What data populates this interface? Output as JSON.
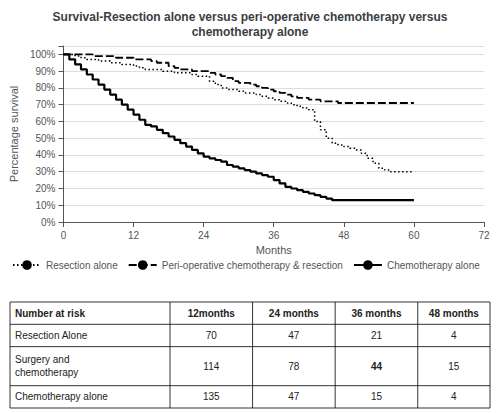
{
  "chart_data": {
    "type": "step",
    "title": "Survival-Resection alone versus peri-operative chemotherapy versus\nchemotherapy alone",
    "xlabel": "Months",
    "ylabel": "Percentage survival",
    "xlim": [
      0,
      72
    ],
    "ylim": [
      0,
      1.05
    ],
    "xticks": [
      0,
      12,
      24,
      36,
      48,
      60,
      72
    ],
    "yticks": [
      {
        "value": 0,
        "label": "0%"
      },
      {
        "value": 0.1,
        "label": "10%"
      },
      {
        "value": 0.2,
        "label": "20%"
      },
      {
        "value": 0.3,
        "label": "30%"
      },
      {
        "value": 0.4,
        "label": "40%"
      },
      {
        "value": 0.5,
        "label": "50%"
      },
      {
        "value": 0.6,
        "label": "60%"
      },
      {
        "value": 0.7,
        "label": "70%"
      },
      {
        "value": 0.8,
        "label": "80%"
      },
      {
        "value": 0.9,
        "label": "90%"
      },
      {
        "value": 1.0,
        "label": "100%"
      }
    ],
    "grid": "y",
    "legend": "bottom",
    "series": [
      {
        "name": "Resection alone",
        "color": "#000000",
        "line_style": "dotted",
        "x": [
          0,
          2,
          3,
          4,
          5,
          6,
          7,
          8,
          9,
          10,
          11,
          12,
          13,
          14,
          15,
          16,
          17,
          18,
          19,
          20,
          21,
          22,
          23,
          24,
          25,
          26,
          27,
          28,
          29,
          30,
          31,
          32,
          33,
          34,
          35,
          36,
          37,
          38,
          39,
          40,
          41,
          42,
          43,
          44,
          45,
          46,
          47,
          48,
          49,
          50,
          51,
          52,
          53,
          54,
          55,
          56,
          57,
          58,
          59,
          60
        ],
        "values": [
          1.0,
          0.99,
          0.98,
          0.97,
          0.97,
          0.96,
          0.96,
          0.95,
          0.95,
          0.94,
          0.94,
          0.93,
          0.92,
          0.91,
          0.91,
          0.91,
          0.9,
          0.9,
          0.89,
          0.89,
          0.89,
          0.88,
          0.87,
          0.87,
          0.84,
          0.82,
          0.8,
          0.79,
          0.79,
          0.78,
          0.77,
          0.77,
          0.76,
          0.75,
          0.74,
          0.73,
          0.72,
          0.71,
          0.7,
          0.69,
          0.68,
          0.67,
          0.6,
          0.55,
          0.5,
          0.47,
          0.46,
          0.45,
          0.44,
          0.43,
          0.41,
          0.38,
          0.35,
          0.32,
          0.31,
          0.3,
          0.3,
          0.3,
          0.3,
          0.3
        ]
      },
      {
        "name": "Peri-operative chemotherapy & resection",
        "color": "#000000",
        "line_style": "dashed",
        "x": [
          0,
          1,
          2,
          3,
          4,
          5,
          6,
          7,
          8,
          9,
          10,
          11,
          12,
          13,
          14,
          15,
          16,
          17,
          18,
          19,
          20,
          21,
          22,
          23,
          24,
          25,
          26,
          27,
          28,
          29,
          30,
          31,
          32,
          33,
          34,
          35,
          36,
          37,
          38,
          39,
          40,
          41,
          42,
          43,
          44,
          45,
          46,
          47,
          48,
          49,
          50,
          51,
          52,
          53,
          54,
          55,
          56,
          57,
          58,
          59,
          60
        ],
        "values": [
          1.0,
          1.0,
          1.0,
          1.0,
          1.0,
          0.99,
          0.99,
          0.99,
          0.99,
          0.98,
          0.98,
          0.98,
          0.97,
          0.97,
          0.97,
          0.96,
          0.95,
          0.95,
          0.93,
          0.92,
          0.91,
          0.91,
          0.9,
          0.9,
          0.9,
          0.89,
          0.88,
          0.87,
          0.86,
          0.84,
          0.83,
          0.83,
          0.82,
          0.81,
          0.8,
          0.79,
          0.78,
          0.77,
          0.76,
          0.75,
          0.74,
          0.74,
          0.73,
          0.73,
          0.72,
          0.72,
          0.72,
          0.71,
          0.71,
          0.71,
          0.71,
          0.71,
          0.71,
          0.71,
          0.71,
          0.71,
          0.71,
          0.71,
          0.71,
          0.71,
          0.71
        ]
      },
      {
        "name": "Chemotherapy alone",
        "color": "#000000",
        "line_style": "solid",
        "x": [
          0,
          1,
          2,
          3,
          4,
          5,
          6,
          7,
          8,
          9,
          10,
          11,
          12,
          13,
          14,
          15,
          16,
          17,
          18,
          19,
          20,
          21,
          22,
          23,
          24,
          25,
          26,
          27,
          28,
          29,
          30,
          31,
          32,
          33,
          34,
          35,
          36,
          37,
          38,
          39,
          40,
          41,
          42,
          43,
          44,
          45,
          46,
          47,
          48,
          49,
          50,
          51,
          52,
          53,
          54,
          55,
          56,
          57,
          58,
          59,
          60
        ],
        "values": [
          1.0,
          0.97,
          0.94,
          0.91,
          0.88,
          0.85,
          0.82,
          0.79,
          0.76,
          0.73,
          0.7,
          0.67,
          0.64,
          0.61,
          0.58,
          0.57,
          0.55,
          0.53,
          0.51,
          0.49,
          0.47,
          0.45,
          0.43,
          0.41,
          0.39,
          0.38,
          0.37,
          0.36,
          0.34,
          0.33,
          0.32,
          0.31,
          0.3,
          0.29,
          0.28,
          0.27,
          0.25,
          0.23,
          0.21,
          0.2,
          0.19,
          0.18,
          0.17,
          0.16,
          0.15,
          0.14,
          0.13,
          0.13,
          0.13,
          0.13,
          0.13,
          0.13,
          0.13,
          0.13,
          0.13,
          0.13,
          0.13,
          0.13,
          0.13,
          0.13,
          0.13
        ]
      }
    ],
    "table_headers": [
      "Number at risk",
      "12months",
      "24 months",
      "36 months",
      "48 months"
    ],
    "table_rows": [
      [
        "Resection Alone",
        "70",
        "47",
        "21",
        "4"
      ],
      [
        "Surgery and\nchemotherapy",
        "114",
        "78",
        "44",
        "15"
      ],
      [
        "Chemotherapy alone",
        "135",
        "47",
        "15",
        "4"
      ]
    ]
  }
}
